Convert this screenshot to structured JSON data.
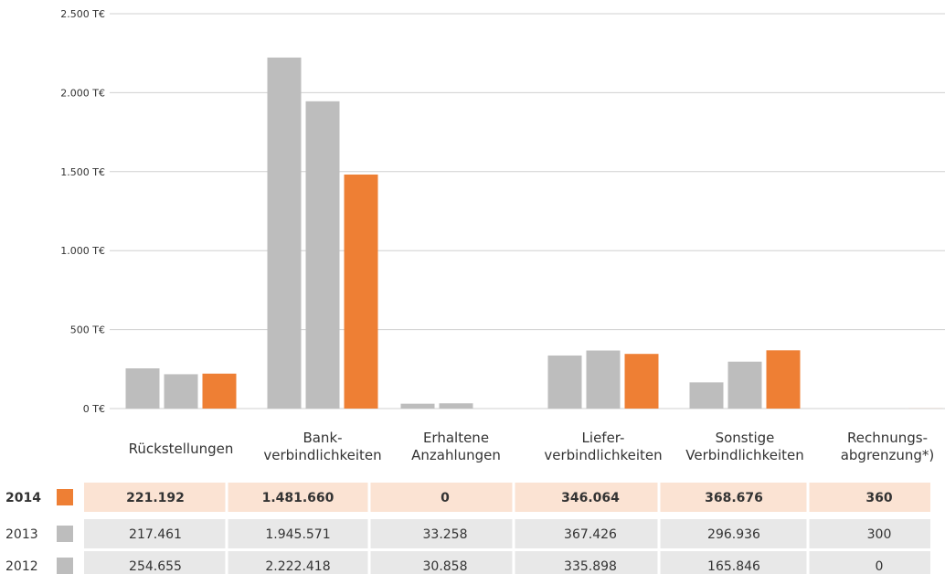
{
  "colors": {
    "current": "#ee7f34",
    "previous": "#bdbdbd",
    "highlight_row": "#fbe3d3",
    "row": "#e8e8e8",
    "grid": "#d0d0d0"
  },
  "chart_data": {
    "type": "bar",
    "y_tick_labels": [
      "0 T€",
      "500 T€",
      "1.000 T€",
      "1.500 T€",
      "2.000 T€",
      "2.500 T€"
    ],
    "y_tick_values": [
      0,
      500,
      1000,
      1500,
      2000,
      2500
    ],
    "ylim": [
      0,
      2500
    ],
    "unit": "T€",
    "categories": [
      [
        "Rückstellungen"
      ],
      [
        "Bank-",
        "verbindlichkeiten"
      ],
      [
        "Erhaltene",
        "Anzahlungen"
      ],
      [
        "Liefer-",
        "verbindlichkeiten"
      ],
      [
        "Sonstige",
        "Verbindlichkeiten"
      ],
      [
        "Rechnungs-",
        "abgrenzung*)"
      ]
    ],
    "series": [
      {
        "name": "2012",
        "color": "#bdbdbd",
        "values": [
          254.655,
          2222.418,
          30.858,
          335.898,
          165.846,
          0
        ]
      },
      {
        "name": "2013",
        "color": "#bdbdbd",
        "values": [
          217.461,
          1945.571,
          33.258,
          367.426,
          296.936,
          0.3
        ]
      },
      {
        "name": "2014",
        "color": "#ee7f34",
        "values": [
          221.192,
          1481.66,
          0,
          346.064,
          368.676,
          0.36
        ]
      }
    ],
    "table": {
      "rows": [
        {
          "year": "2014",
          "bold": true,
          "swatch": "#ee7f34",
          "cells": [
            "221.192",
            "1.481.660",
            "0",
            "346.064",
            "368.676",
            "360"
          ]
        },
        {
          "year": "2013",
          "bold": false,
          "swatch": "#bdbdbd",
          "cells": [
            "217.461",
            "1.945.571",
            "33.258",
            "367.426",
            "296.936",
            "300"
          ]
        },
        {
          "year": "2012",
          "bold": false,
          "swatch": "#bdbdbd",
          "cells": [
            "254.655",
            "2.222.418",
            "30.858",
            "335.898",
            "165.846",
            "0"
          ]
        }
      ]
    }
  }
}
